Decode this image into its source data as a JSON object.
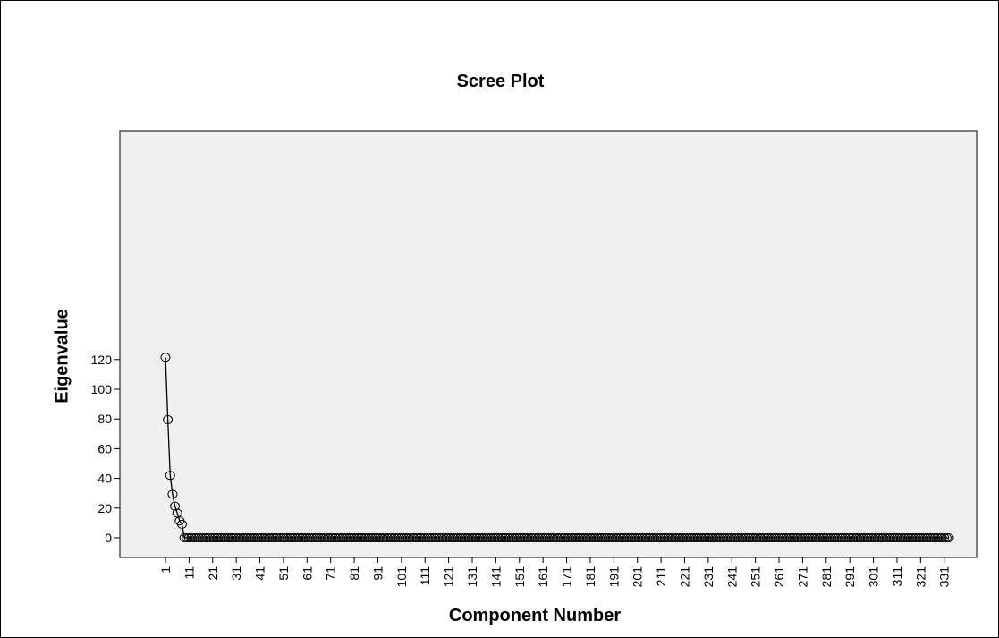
{
  "chart_data": {
    "type": "line",
    "title": "Scree Plot",
    "xlabel": "Component Number",
    "ylabel": "Eigenvalue",
    "x_range": [
      1,
      333
    ],
    "ylim": [
      -6,
      138
    ],
    "y_ticks": [
      0,
      20,
      40,
      60,
      80,
      100,
      120
    ],
    "x_tick_labels": [
      "1",
      "11",
      "21",
      "31",
      "41",
      "51",
      "61",
      "71",
      "81",
      "91",
      "101",
      "111",
      "121",
      "131",
      "141",
      "151",
      "161",
      "171",
      "181",
      "191",
      "201",
      "211",
      "221",
      "231",
      "241",
      "251",
      "261",
      "271",
      "281",
      "291",
      "301",
      "311",
      "321",
      "331"
    ],
    "series": [
      {
        "leading_values": [
          121.5,
          79.5,
          42.0,
          29.3,
          21.3,
          16.6,
          11.3,
          9.1
        ],
        "remaining_value": 0,
        "markers": "open-circle",
        "n_components": 333
      }
    ],
    "grid": false,
    "legend": "none",
    "colors": {
      "plot_background": "#f0f0f0",
      "line": "#000000",
      "marker": "#000000"
    }
  }
}
